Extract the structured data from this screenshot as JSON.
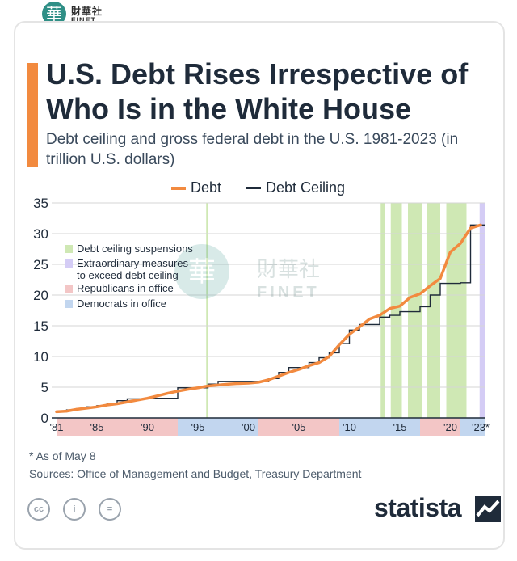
{
  "header": {
    "logo_cn": "財華社",
    "logo_en": "FINET"
  },
  "title": "U.S. Debt Rises Irrespective of Who Is in the White House",
  "subtitle": "Debt ceiling and gross federal debt in the U.S. 1981-2023 (in trillion U.S. dollars)",
  "footnote": "* As of May 8",
  "sources": "Sources: Office of Management and Budget, Treasury Department",
  "brand": "statista",
  "watermark": {
    "cn": "財華社",
    "en": "FINET"
  },
  "chart_data": {
    "type": "line",
    "ylim": [
      0,
      35
    ],
    "xlim": [
      1981,
      2023.4
    ],
    "yticks": [
      0,
      5,
      10,
      15,
      20,
      25,
      30,
      35
    ],
    "xticks": [
      {
        "x": 1981,
        "label": "'81"
      },
      {
        "x": 1985,
        "label": "'85"
      },
      {
        "x": 1990,
        "label": "'90"
      },
      {
        "x": 1995,
        "label": "'95"
      },
      {
        "x": 2000,
        "label": "'00"
      },
      {
        "x": 2005,
        "label": "'05"
      },
      {
        "x": 2010,
        "label": "'10"
      },
      {
        "x": 2015,
        "label": "'15"
      },
      {
        "x": 2020,
        "label": "'20"
      },
      {
        "x": 2023,
        "label": "'23*"
      }
    ],
    "grid": true,
    "legend_top": [
      "Debt",
      "Debt Ceiling"
    ],
    "legend_inner": [
      {
        "label": "Debt ceiling suspensions",
        "color": "#cfe8b4"
      },
      {
        "label": "Extraordinary measures to exceed debt ceiling",
        "color": "#d4ccf5"
      },
      {
        "label": "Republicans in office",
        "color": "#f3c6c6"
      },
      {
        "label": "Democrats in office",
        "color": "#c2d6ef"
      }
    ],
    "colors": {
      "debt": "#f28a3f",
      "ceiling": "#1f2b3a",
      "suspension": "#cfe8b4",
      "extraordinary": "#d4ccf5",
      "republican": "#f3c6c6",
      "democrat": "#c2d6ef",
      "grid": "#d6d6d6"
    },
    "series": [
      {
        "name": "Debt",
        "x": [
          1981,
          1982,
          1983,
          1984,
          1985,
          1986,
          1987,
          1988,
          1989,
          1990,
          1991,
          1992,
          1993,
          1994,
          1995,
          1996,
          1997,
          1998,
          1999,
          2000,
          2001,
          2002,
          2003,
          2004,
          2005,
          2006,
          2007,
          2008,
          2009,
          2010,
          2011,
          2012,
          2013,
          2014,
          2015,
          2016,
          2017,
          2018,
          2019,
          2020,
          2021,
          2022,
          2023
        ],
        "values": [
          1.0,
          1.1,
          1.4,
          1.6,
          1.8,
          2.1,
          2.3,
          2.6,
          2.9,
          3.2,
          3.6,
          4.0,
          4.35,
          4.65,
          4.9,
          5.2,
          5.35,
          5.5,
          5.6,
          5.65,
          5.8,
          6.2,
          6.8,
          7.4,
          7.9,
          8.5,
          9.0,
          10.0,
          11.9,
          13.6,
          14.8,
          16.1,
          16.7,
          17.8,
          18.2,
          19.6,
          20.2,
          21.5,
          22.7,
          27.0,
          28.4,
          30.9,
          31.4
        ]
      },
      {
        "name": "Debt Ceiling",
        "x": [
          1981,
          1982,
          1983,
          1984,
          1985,
          1986,
          1987,
          1988,
          1990,
          1993,
          1996,
          1997,
          2002,
          2003,
          2004,
          2006,
          2007,
          2008,
          2009,
          2010,
          2011,
          2013,
          2014,
          2015,
          2017,
          2018,
          2019,
          2021,
          2022,
          2023.4
        ],
        "values": [
          1.0,
          1.3,
          1.5,
          1.8,
          2.0,
          2.3,
          2.8,
          3.1,
          3.2,
          4.9,
          5.5,
          5.95,
          6.4,
          7.4,
          8.2,
          9.0,
          9.8,
          10.6,
          12.1,
          14.3,
          15.2,
          16.4,
          16.7,
          17.3,
          18.1,
          20.0,
          21.9,
          22.0,
          31.4,
          31.4
        ]
      }
    ],
    "suspensions": [
      [
        2013.1,
        2013.5
      ],
      [
        2014.1,
        2015.2
      ],
      [
        2015.8,
        2017.2
      ],
      [
        2017.7,
        2019.0
      ],
      [
        2019.6,
        2021.6
      ]
    ],
    "extraordinary": [
      [
        2022.9,
        2023.4
      ]
    ],
    "extra_lines": [
      1995.9
    ],
    "parties": [
      {
        "from": 1981,
        "to": 1993,
        "party": "republican"
      },
      {
        "from": 1993,
        "to": 2001,
        "party": "democrat"
      },
      {
        "from": 2001,
        "to": 2009,
        "party": "republican"
      },
      {
        "from": 2009,
        "to": 2017,
        "party": "democrat"
      },
      {
        "from": 2017,
        "to": 2021,
        "party": "republican"
      },
      {
        "from": 2021,
        "to": 2023.4,
        "party": "democrat"
      }
    ]
  }
}
